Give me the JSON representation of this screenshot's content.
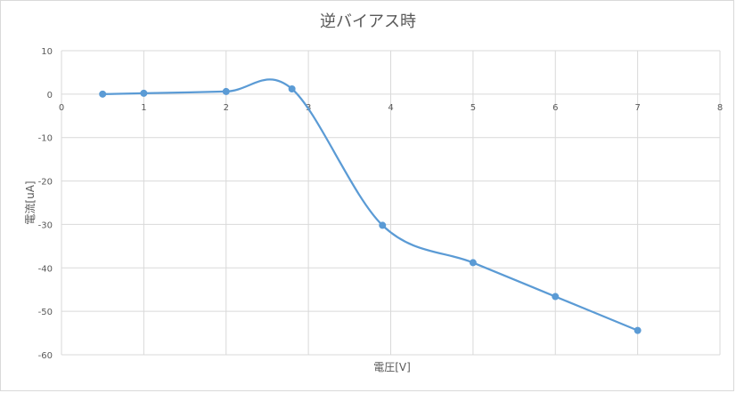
{
  "chart_data": {
    "type": "scatter",
    "title": "逆バイアス時",
    "xlabel": "電圧[V]",
    "ylabel": "電流[uA]",
    "xlim": [
      0,
      8
    ],
    "ylim": [
      -60,
      10
    ],
    "xticks": [
      0,
      1,
      2,
      3,
      4,
      5,
      6,
      7,
      8
    ],
    "yticks": [
      10,
      0,
      -10,
      -20,
      -30,
      -40,
      -50,
      -60
    ],
    "grid": true,
    "smooth": true,
    "series": [
      {
        "color": "#5b9bd5",
        "x": [
          0.5,
          1.0,
          2.0,
          2.8,
          3.9,
          5.0,
          6.0,
          7.0
        ],
        "y": [
          0.0,
          0.2,
          0.6,
          1.2,
          -30.2,
          -38.8,
          -46.6,
          -54.4
        ]
      }
    ]
  },
  "colors": {
    "grid": "#d9d9d9",
    "axis_text": "#595959",
    "series": "#5b9bd5"
  }
}
